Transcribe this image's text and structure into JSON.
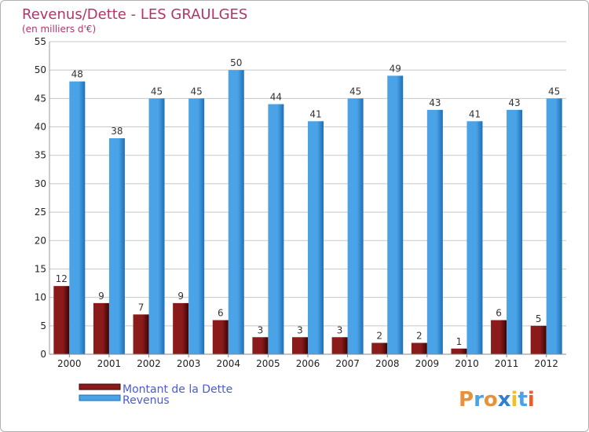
{
  "title": "Revenus/Dette - LES GRAULGES",
  "subtitle": "(en milliers d'€)",
  "logo": {
    "text": "Proxiti"
  },
  "colors": {
    "debt": "#8b1a1a",
    "debt_dark": "#3a0505",
    "revenue": "#4aa3e6",
    "revenue_dark": "#1f6fb5",
    "grid": "#c8c8c8",
    "title": "#b3336c",
    "legend": "#4a5ad8"
  },
  "chart_data": {
    "type": "bar",
    "title": "Revenus/Dette - LES GRAULGES",
    "ylabel": "(en milliers d'€)",
    "xlabel": "",
    "ylim": [
      0,
      55
    ],
    "yticks": [
      0,
      5,
      10,
      15,
      20,
      25,
      30,
      35,
      40,
      45,
      50,
      55
    ],
    "grid": true,
    "legend_position": "bottom-left",
    "categories": [
      "2000",
      "2001",
      "2002",
      "2003",
      "2004",
      "2005",
      "2006",
      "2007",
      "2008",
      "2009",
      "2010",
      "2011",
      "2012"
    ],
    "series": [
      {
        "name": "Montant de la Dette",
        "values": [
          12,
          9,
          7,
          9,
          6,
          3,
          3,
          3,
          2,
          2,
          1,
          6,
          5
        ]
      },
      {
        "name": "Revenus",
        "values": [
          48,
          38,
          45,
          45,
          50,
          44,
          41,
          45,
          49,
          43,
          41,
          43,
          45
        ]
      }
    ]
  }
}
